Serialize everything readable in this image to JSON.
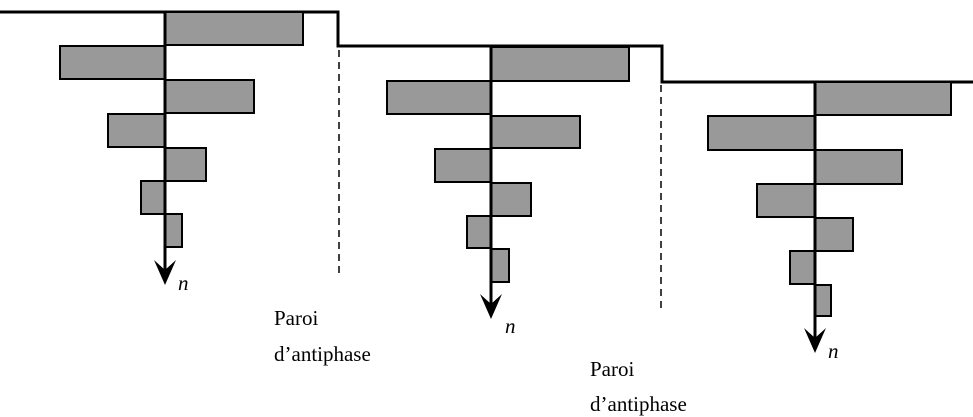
{
  "axes": [
    {
      "label": "n"
    },
    {
      "label": "n"
    },
    {
      "label": "n"
    }
  ],
  "walls": [
    {
      "lines": [
        "Paroi",
        "d’antiphase"
      ]
    },
    {
      "lines": [
        "Paroi",
        "d’antiphase"
      ]
    }
  ]
}
